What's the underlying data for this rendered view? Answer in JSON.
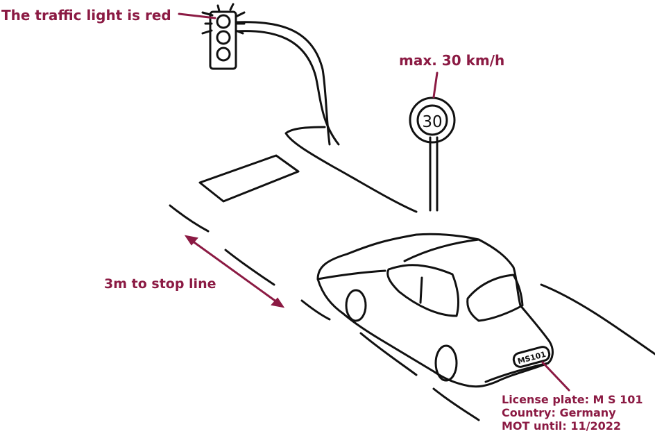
{
  "colors": {
    "accent": "#8b1a43",
    "ink": "#111111",
    "background": "#ffffff"
  },
  "labels": {
    "traffic_light": "The traffic light is red",
    "speed_limit": "max. 30 km/h",
    "stop_distance": "3m to stop line",
    "plate_info": [
      "License plate: M S 101",
      "Country: Germany",
      "MOT until: 11/2022"
    ]
  },
  "speed_sign": {
    "value": "30"
  },
  "car": {
    "plate_text": "MS101"
  }
}
